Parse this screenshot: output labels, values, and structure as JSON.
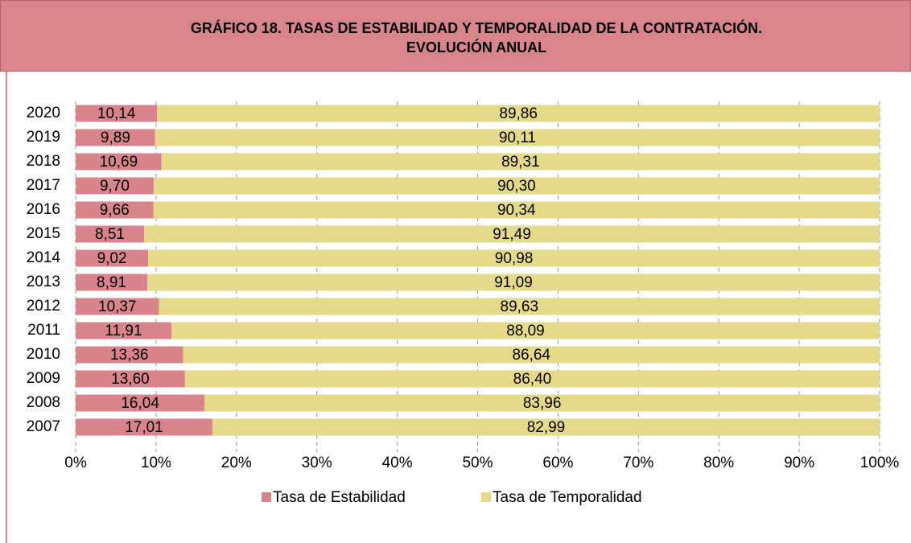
{
  "chart_data": {
    "type": "stacked-barh",
    "title": [
      "GRÁFICO 18. TASAS DE ESTABILIDAD Y TEMPORALIDAD DE LA CONTRATACIÓN.",
      "EVOLUCIÓN ANUAL"
    ],
    "categories": [
      "2020",
      "2019",
      "2018",
      "2017",
      "2016",
      "2015",
      "2014",
      "2013",
      "2012",
      "2011",
      "2010",
      "2009",
      "2008",
      "2007"
    ],
    "series": [
      {
        "name": "Tasa de Estabilidad",
        "color": "#d9848b",
        "values": [
          10.14,
          9.89,
          10.69,
          9.7,
          9.66,
          8.51,
          9.02,
          8.91,
          10.37,
          11.91,
          13.36,
          13.6,
          16.04,
          17.01
        ],
        "value_labels": [
          "10,14",
          "9,89",
          "10,69",
          "9,70",
          "9,66",
          "8,51",
          "9,02",
          "8,91",
          "10,37",
          "11,91",
          "13,36",
          "13,60",
          "16,04",
          "17,01"
        ]
      },
      {
        "name": "Tasa de Temporalidad",
        "color": "#e5da8a",
        "values": [
          89.86,
          90.11,
          89.31,
          90.3,
          90.34,
          91.49,
          90.98,
          91.09,
          89.63,
          88.09,
          86.64,
          86.4,
          83.96,
          82.99
        ],
        "value_labels": [
          "89,86",
          "90,11",
          "89,31",
          "90,30",
          "90,34",
          "91,49",
          "90,98",
          "91,09",
          "89,63",
          "88,09",
          "86,64",
          "86,40",
          "83,96",
          "82,99"
        ]
      }
    ],
    "xlim": [
      0,
      100
    ],
    "xticks": [
      {
        "value": 0,
        "label": "0%"
      },
      {
        "value": 10,
        "label": "10%"
      },
      {
        "value": 20,
        "label": "20%"
      },
      {
        "value": 30,
        "label": "30%"
      },
      {
        "value": 40,
        "label": "40%"
      },
      {
        "value": 50,
        "label": "50%"
      },
      {
        "value": 60,
        "label": "60%"
      },
      {
        "value": 70,
        "label": "70%"
      },
      {
        "value": 80,
        "label": "80%"
      },
      {
        "value": 90,
        "label": "90%"
      },
      {
        "value": 100,
        "label": "100%"
      }
    ],
    "grid": true,
    "legend": "bottom"
  }
}
